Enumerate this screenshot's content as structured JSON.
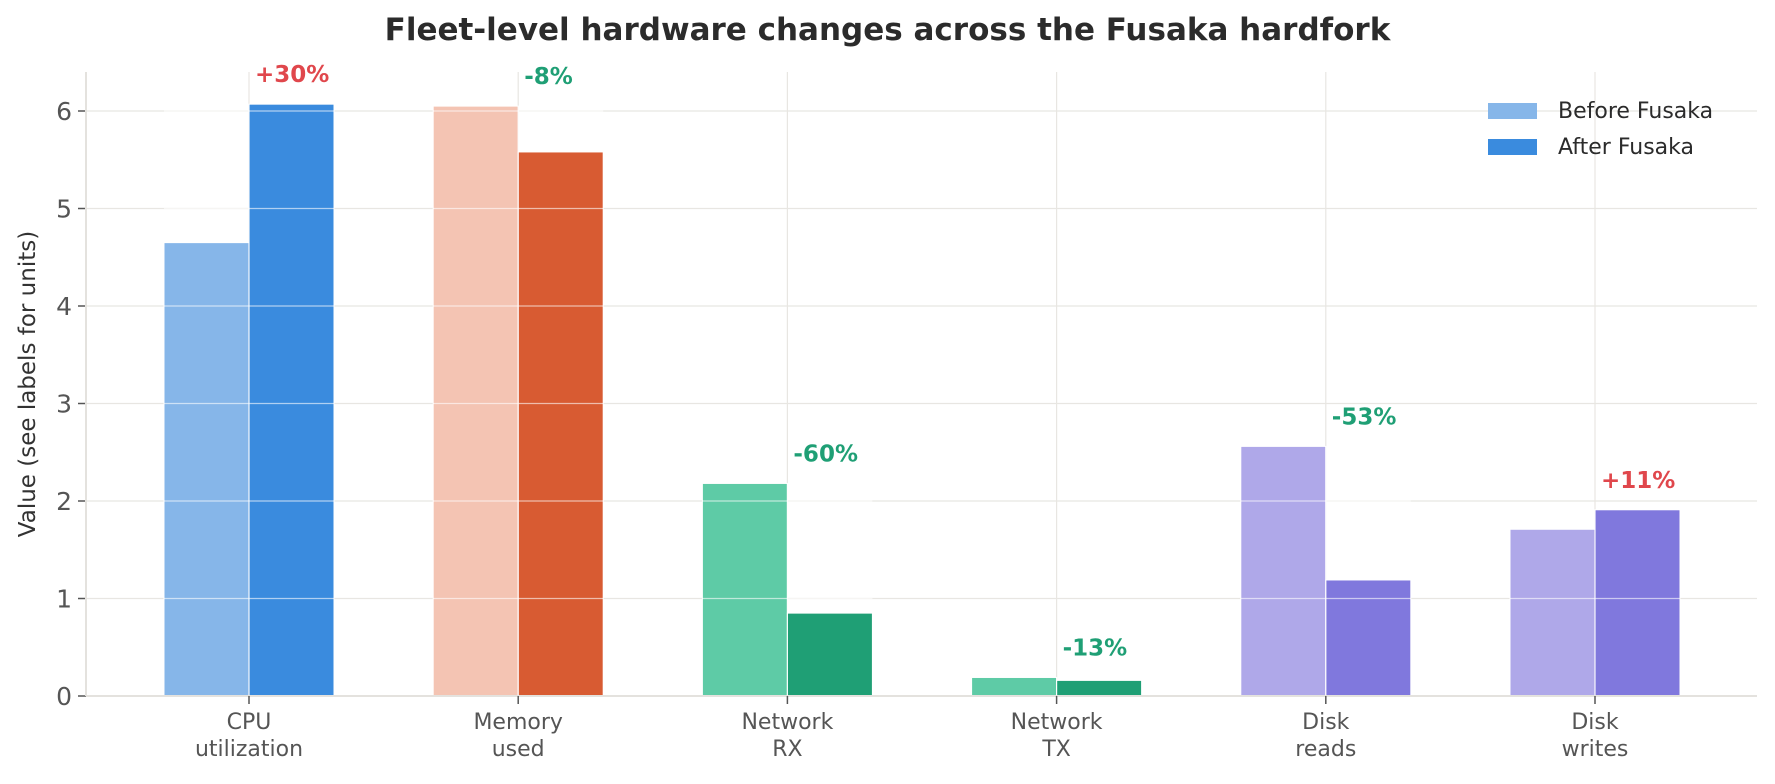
{
  "chart_data": {
    "type": "bar",
    "title": "Fleet-level hardware changes across the Fusaka hardfork",
    "xlabel": "",
    "ylabel": "Value (see labels for units)",
    "ylim": [
      0,
      6.4
    ],
    "yticks": [
      0,
      1,
      2,
      3,
      4,
      5,
      6
    ],
    "grid": true,
    "legend_position": "upper right",
    "categories": [
      "CPU\nutilization",
      "Memory\nused",
      "Network\nRX",
      "Network\nTX",
      "Disk\nreads",
      "Disk\nwrites"
    ],
    "series": [
      {
        "name": "Before Fusaka",
        "values": [
          4.65,
          6.05,
          2.18,
          0.19,
          2.56,
          1.71
        ]
      },
      {
        "name": "After Fusaka",
        "values": [
          6.07,
          5.58,
          0.85,
          0.16,
          1.19,
          1.91
        ]
      }
    ],
    "annotations": [
      "+30%",
      "-8%",
      "-60%",
      "-13%",
      "-53%",
      "+11%"
    ],
    "colors": {
      "before": [
        "#86b6e9",
        "#f4c4b3",
        "#5ecba6",
        "#5ecba6",
        "#afa8e9",
        "#afa8e9"
      ],
      "after": [
        "#3a8bde",
        "#d85b32",
        "#1f9f75",
        "#1f9f75",
        "#8078dd",
        "#8078dd"
      ],
      "increase": "#e0474c",
      "decrease": "#1f9f75"
    }
  },
  "legend": {
    "items": [
      {
        "label": "Before Fusaka",
        "color": "#86b6e9"
      },
      {
        "label": "After Fusaka",
        "color": "#3a8bde"
      }
    ]
  }
}
